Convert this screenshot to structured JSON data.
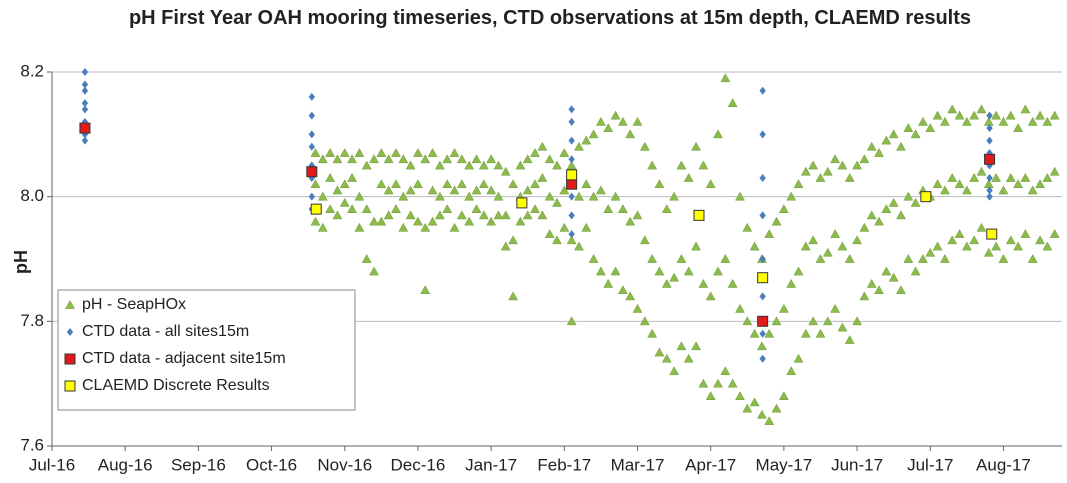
{
  "chart_data": {
    "type": "scatter",
    "title": "pH First Year OAH mooring timeseries, CTD observations at 15m depth, CLAEMD results",
    "ylabel": "pH",
    "xlim": [
      0,
      13.8
    ],
    "xticks": [
      {
        "value": 0,
        "label": "Jul-16"
      },
      {
        "value": 1,
        "label": "Aug-16"
      },
      {
        "value": 2,
        "label": "Sep-16"
      },
      {
        "value": 3,
        "label": "Oct-16"
      },
      {
        "value": 4,
        "label": "Nov-16"
      },
      {
        "value": 5,
        "label": "Dec-16"
      },
      {
        "value": 6,
        "label": "Jan-17"
      },
      {
        "value": 7,
        "label": "Feb-17"
      },
      {
        "value": 8,
        "label": "Mar-17"
      },
      {
        "value": 9,
        "label": "Apr-17"
      },
      {
        "value": 10,
        "label": "May-17"
      },
      {
        "value": 11,
        "label": "Jun-17"
      },
      {
        "value": 12,
        "label": "Jul-17"
      },
      {
        "value": 13,
        "label": "Aug-17"
      }
    ],
    "ylim": [
      7.6,
      8.2
    ],
    "yticks": [
      7.6,
      7.8,
      {
        "value": 8,
        "label": "8.0"
      },
      8.2
    ],
    "grid": true,
    "legend": "lower-left",
    "series": [
      {
        "name": "pH - SeapHOx",
        "color": "#8cbb4c",
        "marker": "triangle",
        "x": [
          3.6,
          3.7,
          3.8,
          3.9,
          4,
          4.1,
          4.2,
          4.3,
          4.4,
          4.5,
          4.6,
          4.7,
          4.8,
          4.9,
          5,
          5.1,
          5.2,
          5.3,
          5.4,
          5.5,
          5.6,
          5.7,
          5.8,
          5.9,
          6,
          6.1,
          6.2,
          6.3,
          6.4,
          6.5,
          6.6,
          6.7,
          6.8,
          6.9,
          7,
          7.1,
          7.2,
          7.3,
          7.4,
          7.5,
          7.6,
          7.7,
          7.8,
          7.9,
          8,
          8.1,
          8.2,
          8.3,
          8.4,
          8.5,
          8.6,
          8.7,
          8.8,
          8.9,
          9,
          9.1,
          9.2,
          9.3,
          9.4,
          9.5,
          9.6,
          9.7,
          9.8,
          9.9,
          10,
          10.1,
          10.2,
          10.3,
          10.4,
          10.5,
          10.6,
          10.7,
          10.8,
          10.9,
          11,
          11.1,
          11.2,
          11.3,
          11.4,
          11.5,
          11.6,
          11.7,
          11.8,
          11.9,
          12,
          12.1,
          12.2,
          12.3,
          12.4,
          12.5,
          12.6,
          12.7,
          12.8,
          12.9,
          13,
          13.1,
          13.2,
          13.3,
          13.4,
          13.5,
          13.6,
          13.7,
          3.6,
          3.7,
          3.8,
          3.9,
          4,
          4.1,
          4.2,
          4.3,
          4.4,
          4.5,
          4.6,
          4.7,
          4.8,
          4.9,
          5,
          5.1,
          5.2,
          5.3,
          5.4,
          5.5,
          5.6,
          5.7,
          5.8,
          5.9,
          6,
          6.1,
          6.2,
          6.3,
          6.4,
          6.5,
          6.6,
          6.7,
          6.8,
          6.9,
          7,
          7.1,
          7.2,
          7.3,
          7.4,
          7.5,
          7.6,
          7.7,
          7.8,
          7.9,
          8,
          8.1,
          8.2,
          8.3,
          8.4,
          8.5,
          8.6,
          8.7,
          8.8,
          8.9,
          9,
          9.1,
          9.2,
          9.3,
          9.4,
          9.5,
          9.6,
          9.7,
          9.8,
          9.9,
          10,
          10.1,
          10.2,
          10.3,
          10.4,
          10.5,
          10.6,
          10.7,
          10.8,
          10.9,
          11,
          11.1,
          11.2,
          11.3,
          11.4,
          11.5,
          11.6,
          11.7,
          11.8,
          11.9,
          12,
          12.1,
          12.2,
          12.3,
          12.4,
          12.5,
          12.6,
          12.7,
          12.8,
          12.9,
          13,
          13.1,
          13.2,
          13.3,
          13.4,
          13.5,
          13.6,
          13.7,
          3.6,
          3.7,
          3.8,
          3.9,
          4,
          4.1,
          4.2,
          4.3,
          4.4,
          4.5,
          4.6,
          4.7,
          4.8,
          4.9,
          5,
          5.1,
          5.2,
          5.3,
          5.4,
          5.5,
          5.6,
          5.7,
          5.8,
          5.9,
          6,
          6.1,
          6.2,
          6.3,
          6.4,
          6.5,
          6.6,
          6.7,
          6.8,
          6.9,
          7,
          7.1,
          7.2,
          7.3,
          7.4,
          7.5,
          7.6,
          7.7,
          7.8,
          7.9,
          8,
          8.1,
          8.2,
          8.3,
          8.4,
          8.5,
          8.6,
          8.7,
          8.8,
          8.9,
          9,
          9.1,
          9.2,
          9.3,
          9.4,
          9.5,
          9.6,
          9.7,
          9.8,
          9.9,
          10,
          10.1,
          10.2,
          10.3,
          10.4,
          10.5,
          10.6,
          10.7,
          10.8,
          10.9,
          11,
          11.1,
          11.2,
          11.3,
          11.4,
          11.5,
          11.6,
          11.7,
          11.8,
          11.9,
          12,
          12.1,
          12.2,
          12.3,
          12.4,
          12.5,
          12.6,
          12.7,
          12.8,
          12.9,
          13,
          13.1,
          13.2,
          13.3,
          13.4,
          13.5,
          13.6,
          13.7
        ],
        "values": [
          8.07,
          8.06,
          8.07,
          8.06,
          8.07,
          8.06,
          8.07,
          8.05,
          8.06,
          8.07,
          8.06,
          8.07,
          8.06,
          8.05,
          8.07,
          8.06,
          8.07,
          8.05,
          8.06,
          8.07,
          8.06,
          8.05,
          8.06,
          8.05,
          8.06,
          8.05,
          8.04,
          8.02,
          8.05,
          8.06,
          8.07,
          8.08,
          8.06,
          8.05,
          8.07,
          8.05,
          8.08,
          8.09,
          8.1,
          8.12,
          8.11,
          8.13,
          8.12,
          8.1,
          8.12,
          8.08,
          8.05,
          8.02,
          7.98,
          8.0,
          8.05,
          8.03,
          8.08,
          8.05,
          8.02,
          8.1,
          8.19,
          8.15,
          8.0,
          7.95,
          7.92,
          7.9,
          7.94,
          7.96,
          7.98,
          8.0,
          8.02,
          8.04,
          8.05,
          8.03,
          8.04,
          8.06,
          8.05,
          8.03,
          8.05,
          8.06,
          8.08,
          8.07,
          8.09,
          8.1,
          8.08,
          8.11,
          8.1,
          8.12,
          8.11,
          8.13,
          8.12,
          8.14,
          8.13,
          8.12,
          8.13,
          8.14,
          8.12,
          8.13,
          8.12,
          8.13,
          8.11,
          8.14,
          8.12,
          8.13,
          8.12,
          8.13,
          8.02,
          8.0,
          8.03,
          8.01,
          8.02,
          8.03,
          8.0,
          7.98,
          7.96,
          8.02,
          8.01,
          8.02,
          8.0,
          8.01,
          8.02,
          7.95,
          8.01,
          8.0,
          8.02,
          8.01,
          8.02,
          8.0,
          8.01,
          8.02,
          8.01,
          8.0,
          7.97,
          7.93,
          8.0,
          8.01,
          8.02,
          8.03,
          8.0,
          7.99,
          8.01,
          7.93,
          8.0,
          8.02,
          8.0,
          8.01,
          7.98,
          8.0,
          7.98,
          7.96,
          7.97,
          7.93,
          7.9,
          7.88,
          7.86,
          7.87,
          7.9,
          7.88,
          7.92,
          7.86,
          7.84,
          7.88,
          7.9,
          7.86,
          7.82,
          7.8,
          7.78,
          7.76,
          7.78,
          7.8,
          7.82,
          7.86,
          7.88,
          7.92,
          7.93,
          7.9,
          7.91,
          7.94,
          7.92,
          7.9,
          7.93,
          7.95,
          7.97,
          7.96,
          7.98,
          7.99,
          7.97,
          8.0,
          7.99,
          8.01,
          8.0,
          8.02,
          8.01,
          8.03,
          8.02,
          8.01,
          8.03,
          8.04,
          8.02,
          8.03,
          8.01,
          8.03,
          8.02,
          8.03,
          8.01,
          8.02,
          8.03,
          8.04,
          7.96,
          7.95,
          7.98,
          7.97,
          7.99,
          7.98,
          7.95,
          7.9,
          7.88,
          7.96,
          7.97,
          7.98,
          7.95,
          7.97,
          7.96,
          7.85,
          7.96,
          7.97,
          7.98,
          7.95,
          7.97,
          7.96,
          7.98,
          7.97,
          7.96,
          7.97,
          7.92,
          7.84,
          7.96,
          7.97,
          7.98,
          7.97,
          7.94,
          7.93,
          7.95,
          7.8,
          7.92,
          7.95,
          7.9,
          7.88,
          7.86,
          7.88,
          7.85,
          7.84,
          7.82,
          7.8,
          7.78,
          7.75,
          7.74,
          7.72,
          7.76,
          7.74,
          7.76,
          7.7,
          7.68,
          7.7,
          7.72,
          7.7,
          7.68,
          7.66,
          7.67,
          7.65,
          7.64,
          7.66,
          7.68,
          7.72,
          7.74,
          7.78,
          7.8,
          7.78,
          7.8,
          7.82,
          7.79,
          7.77,
          7.8,
          7.84,
          7.86,
          7.85,
          7.88,
          7.87,
          7.85,
          7.9,
          7.88,
          7.9,
          7.91,
          7.92,
          7.9,
          7.93,
          7.94,
          7.92,
          7.93,
          7.95,
          7.91,
          7.92,
          7.9,
          7.93,
          7.92,
          7.94,
          7.9,
          7.93,
          7.92,
          7.94
        ]
      },
      {
        "name": "CTD data - all sites15m",
        "color": "#4a7ebb",
        "marker": "diamond",
        "x": [
          0.45,
          0.45,
          0.45,
          0.45,
          0.45,
          0.45,
          0.45,
          0.45,
          3.55,
          3.55,
          3.55,
          3.55,
          3.55,
          3.55,
          3.55,
          3.55,
          7.1,
          7.1,
          7.1,
          7.1,
          7.1,
          7.1,
          7.1,
          7.1,
          9.71,
          9.71,
          9.71,
          9.71,
          9.71,
          9.71,
          9.71,
          9.71,
          12.81,
          12.81,
          12.81,
          12.81,
          12.81,
          12.81,
          12.81,
          12.81
        ],
        "values": [
          8.2,
          8.18,
          8.17,
          8.15,
          8.14,
          8.12,
          8.1,
          8.09,
          8.16,
          8.13,
          8.1,
          8.08,
          8.05,
          8.03,
          8.0,
          7.98,
          8.14,
          8.12,
          8.09,
          8.06,
          8.03,
          8.0,
          7.97,
          7.94,
          8.17,
          8.1,
          8.03,
          7.97,
          7.9,
          7.84,
          7.78,
          7.74,
          8.13,
          8.11,
          8.09,
          8.07,
          8.05,
          8.03,
          8.01,
          8.0
        ]
      },
      {
        "name": "CTD data - adjacent site15m",
        "color": "#e31a1c",
        "marker": "square",
        "x": [
          0.45,
          3.55,
          7.1,
          9.71,
          12.81
        ],
        "values": [
          8.11,
          8.04,
          8.02,
          7.8,
          8.06
        ]
      },
      {
        "name": "CLAEMD Discrete Results",
        "color": "#ffff00",
        "marker": "square",
        "x": [
          3.61,
          6.42,
          7.1,
          8.84,
          9.71,
          11.94,
          12.84
        ],
        "values": [
          7.98,
          7.99,
          8.035,
          7.97,
          7.87,
          8.0,
          7.94
        ]
      }
    ]
  }
}
